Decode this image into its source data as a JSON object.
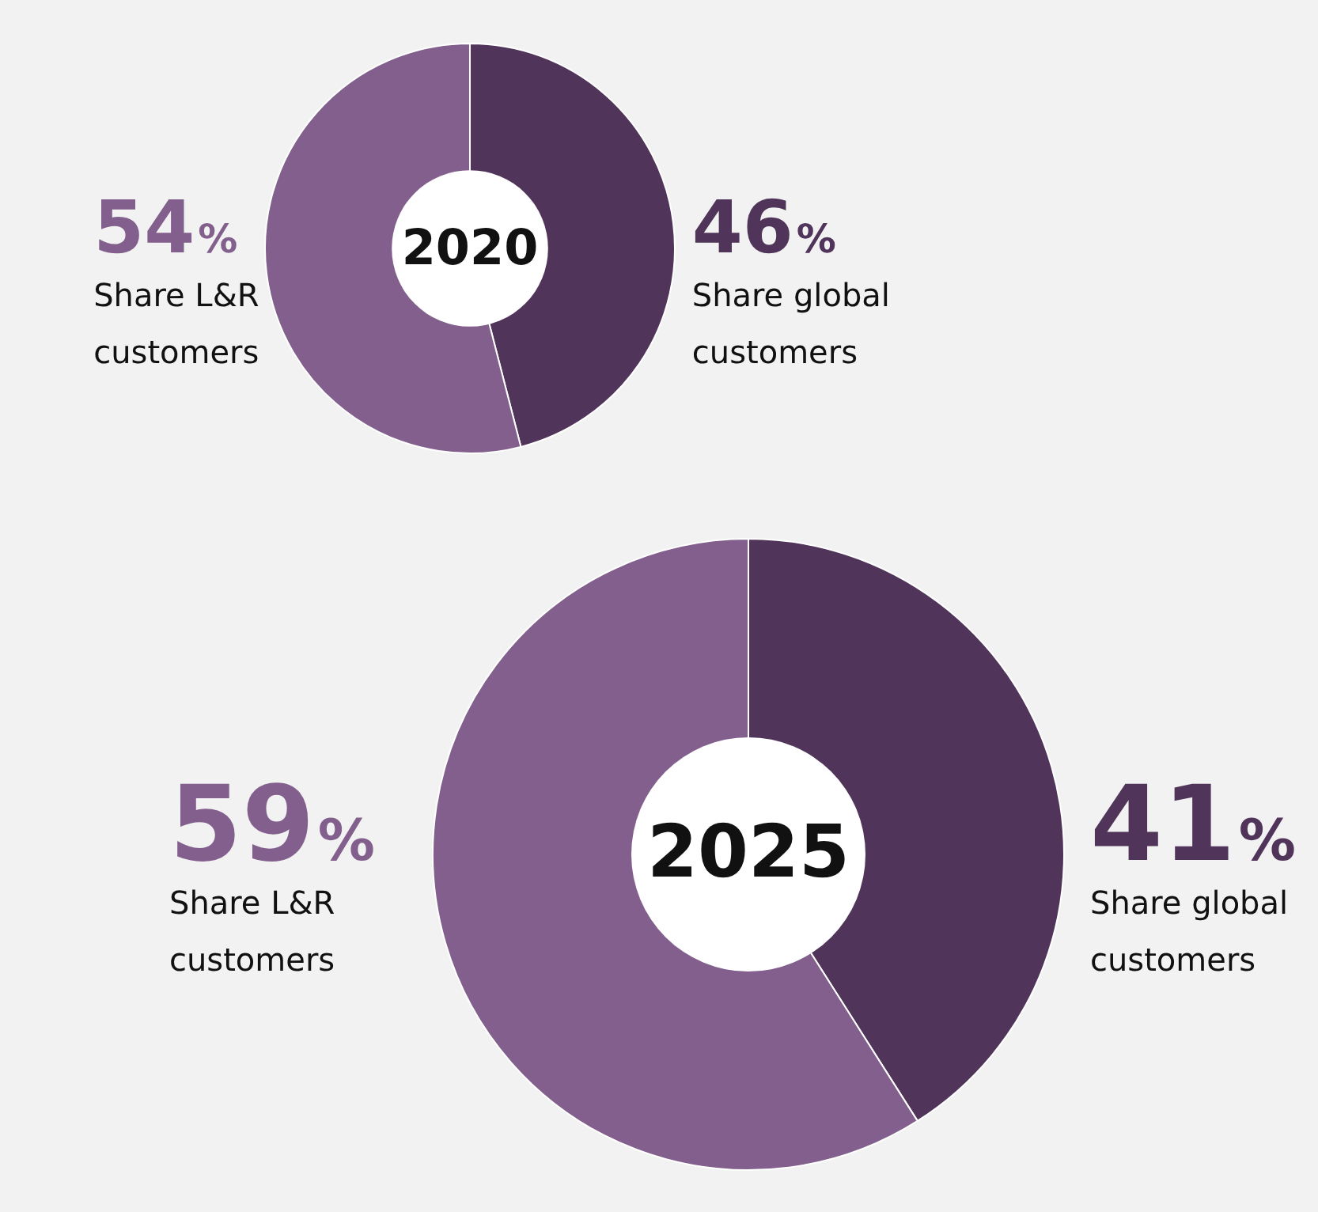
{
  "chart_data": [
    {
      "type": "donut",
      "title": "2020",
      "categories": [
        "Share global customers",
        "Share L&R customers"
      ],
      "values": [
        46,
        54
      ],
      "value_labels": [
        "46%",
        "54%"
      ],
      "colors": [
        "#50345a",
        "#825f8c"
      ],
      "legend": false
    },
    {
      "type": "donut",
      "title": "2025",
      "categories": [
        "Share global customers",
        "Share L&R customers"
      ],
      "values": [
        41,
        59
      ],
      "value_labels": [
        "41%",
        "59%"
      ],
      "colors": [
        "#50345a",
        "#825f8c"
      ],
      "legend": false
    }
  ]
}
